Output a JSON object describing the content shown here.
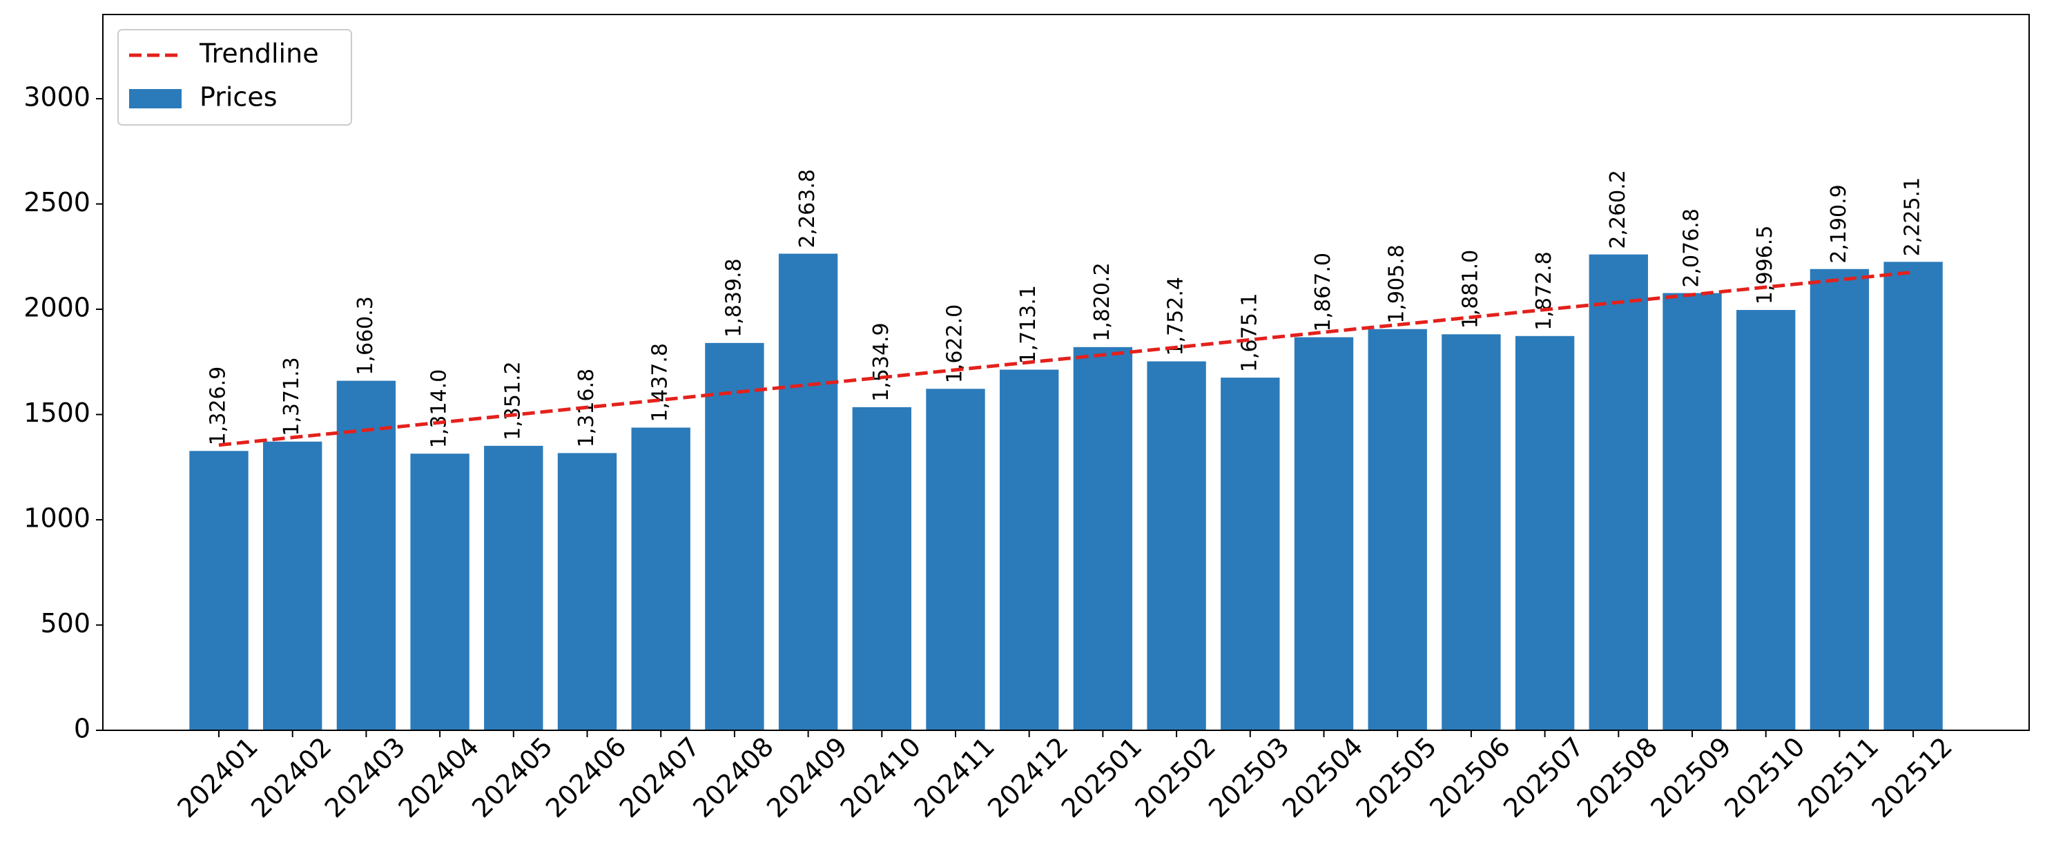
{
  "chart_data": {
    "type": "bar",
    "categories": [
      "202401",
      "202402",
      "202403",
      "202404",
      "202405",
      "202406",
      "202407",
      "202408",
      "202409",
      "202410",
      "202411",
      "202412",
      "202501",
      "202502",
      "202503",
      "202504",
      "202505",
      "202506",
      "202507",
      "202508",
      "202509",
      "202510",
      "202511",
      "202512"
    ],
    "series": [
      {
        "name": "Trendline",
        "type": "line",
        "dashed": true,
        "color": "#e3211c",
        "values": [
          1355,
          1391,
          1426,
          1462,
          1498,
          1534,
          1569,
          1605,
          1641,
          1676,
          1712,
          1748,
          1783,
          1819,
          1855,
          1891,
          1926,
          1962,
          1998,
          2033,
          2069,
          2105,
          2140,
          2176
        ]
      },
      {
        "name": "Prices",
        "type": "bar",
        "color": "#2b7bba",
        "values": [
          1326.9,
          1371.3,
          1660.3,
          1314.0,
          1351.2,
          1316.8,
          1437.8,
          1839.8,
          2263.8,
          1534.9,
          1622.0,
          1713.1,
          1820.2,
          1752.4,
          1675.1,
          1867.0,
          1905.8,
          1881.0,
          1872.8,
          2260.2,
          2076.8,
          1996.5,
          2190.9,
          2225.1
        ],
        "value_labels": [
          "1,326.9",
          "1,371.3",
          "1,660.3",
          "1,314.0",
          "1,351.2",
          "1,316.8",
          "1,437.8",
          "1,839.8",
          "2,263.8",
          "1,534.9",
          "1,622.0",
          "1,713.1",
          "1,820.2",
          "1,752.4",
          "1,675.1",
          "1,867.0",
          "1,905.8",
          "1,881.0",
          "1,872.8",
          "2,260.2",
          "2,076.8",
          "1,996.5",
          "2,190.9",
          "2,225.1"
        ]
      }
    ],
    "ylim": [
      0,
      3400
    ],
    "yticks": [
      0,
      500,
      1000,
      1500,
      2000,
      2500,
      3000
    ],
    "legend": "upper left"
  }
}
